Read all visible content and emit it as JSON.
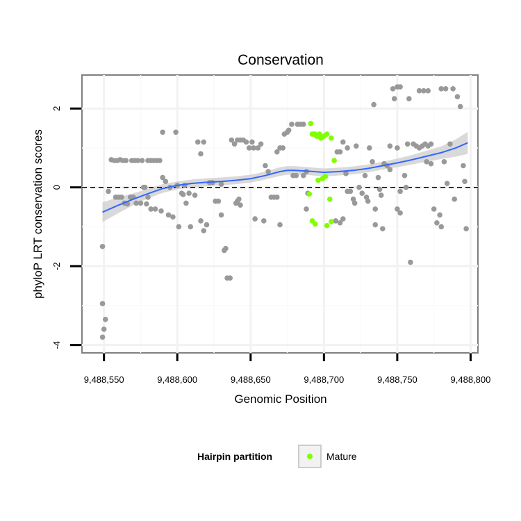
{
  "chart_data": {
    "type": "scatter",
    "title": "Conservation",
    "xlabel": "Genomic Position",
    "ylabel": "phyloP LRT conservation scores",
    "xlim": [
      9488535,
      9488805
    ],
    "ylim": [
      -4.2,
      2.85
    ],
    "x_ticks": [
      {
        "value": 9488550,
        "label": "9,488,550"
      },
      {
        "value": 9488600,
        "label": "9,488,600"
      },
      {
        "value": 9488650,
        "label": "9,488,650"
      },
      {
        "value": 9488700,
        "label": "9,488,700"
      },
      {
        "value": 9488750,
        "label": "9,488,750"
      },
      {
        "value": 9488800,
        "label": "9,488,800"
      }
    ],
    "y_ticks": [
      {
        "value": -4,
        "label": "-4"
      },
      {
        "value": -2,
        "label": "-2"
      },
      {
        "value": 0,
        "label": "0"
      },
      {
        "value": 2,
        "label": "2"
      }
    ],
    "reference_line": {
      "y": 0,
      "style": "dashed"
    },
    "grid": true,
    "legend": {
      "title": "Hairpin partition",
      "position": "bottom",
      "items": [
        {
          "label": "Mature",
          "color": "#7fff00"
        }
      ]
    },
    "colors": {
      "other": "#999999",
      "mature": "#7fff00",
      "smooth": "#3366ff",
      "ribbon": "#cccccc"
    },
    "smooth": {
      "x": [
        9488549,
        9488560,
        9488570,
        9488580,
        9488590,
        9488600,
        9488610,
        9488620,
        9488630,
        9488640,
        9488650,
        9488660,
        9488670,
        9488675,
        9488680,
        9488690,
        9488700,
        9488710,
        9488720,
        9488730,
        9488740,
        9488750,
        9488760,
        9488770,
        9488780,
        9488790,
        9488798
      ],
      "y": [
        -0.63,
        -0.45,
        -0.3,
        -0.16,
        -0.03,
        0.05,
        0.1,
        0.13,
        0.15,
        0.18,
        0.22,
        0.3,
        0.4,
        0.43,
        0.43,
        0.41,
        0.38,
        0.4,
        0.43,
        0.48,
        0.55,
        0.62,
        0.7,
        0.79,
        0.88,
        1.0,
        1.13
      ],
      "band": [
        0.25,
        0.2,
        0.15,
        0.12,
        0.11,
        0.1,
        0.1,
        0.1,
        0.1,
        0.1,
        0.1,
        0.1,
        0.11,
        0.11,
        0.11,
        0.1,
        0.1,
        0.1,
        0.1,
        0.1,
        0.1,
        0.11,
        0.12,
        0.14,
        0.16,
        0.22,
        0.28
      ]
    },
    "series": [
      {
        "name": "Mature",
        "points": [
          [
            9488691,
            1.62
          ],
          [
            9488692,
            1.35
          ],
          [
            9488693,
            1.35
          ],
          [
            9488694,
            1.35
          ],
          [
            9488695,
            1.3
          ],
          [
            9488696,
            1.3
          ],
          [
            9488697,
            1.35
          ],
          [
            9488698,
            1.25
          ],
          [
            9488700,
            1.3
          ],
          [
            9488702,
            1.35
          ],
          [
            9488705,
            1.25
          ],
          [
            9488707,
            0.68
          ],
          [
            9488696,
            0.18
          ],
          [
            9488699,
            0.22
          ],
          [
            9488701,
            0.28
          ],
          [
            9488690,
            -0.17
          ],
          [
            9488704,
            -0.3
          ],
          [
            9488692,
            -0.85
          ],
          [
            9488694,
            -0.93
          ],
          [
            9488702,
            -0.97
          ],
          [
            9488705,
            -0.87
          ]
        ]
      },
      {
        "points": [
          [
            9488549,
            -1.5
          ],
          [
            9488549,
            -2.95
          ],
          [
            9488551,
            -3.35
          ],
          [
            9488550,
            -3.6
          ],
          [
            9488549,
            -3.8
          ],
          [
            9488553,
            -0.1
          ],
          [
            9488555,
            0.7
          ],
          [
            9488557,
            0.68
          ],
          [
            9488559,
            0.68
          ],
          [
            9488561,
            0.7
          ],
          [
            9488563,
            0.68
          ],
          [
            9488565,
            0.68
          ],
          [
            9488558,
            -0.25
          ],
          [
            9488560,
            -0.25
          ],
          [
            9488562,
            -0.25
          ],
          [
            9488564,
            -0.4
          ],
          [
            9488566,
            -0.42
          ],
          [
            9488569,
            0.68
          ],
          [
            9488571,
            0.68
          ],
          [
            9488573,
            0.68
          ],
          [
            9488576,
            0.68
          ],
          [
            9488568,
            -0.25
          ],
          [
            9488570,
            -0.25
          ],
          [
            9488572,
            -0.4
          ],
          [
            9488575,
            -0.4
          ],
          [
            9488579,
            -0.42
          ],
          [
            9488577,
            0.0
          ],
          [
            9488578,
            0.0
          ],
          [
            9488580,
            0.68
          ],
          [
            9488582,
            0.68
          ],
          [
            9488584,
            0.68
          ],
          [
            9488586,
            0.68
          ],
          [
            9488588,
            0.68
          ],
          [
            9488580,
            -0.25
          ],
          [
            9488582,
            -0.55
          ],
          [
            9488585,
            -0.55
          ],
          [
            9488589,
            -0.6
          ],
          [
            9488590,
            1.4
          ],
          [
            9488590,
            0.25
          ],
          [
            9488592,
            0.15
          ],
          [
            9488595,
            0.0
          ],
          [
            9488594,
            -0.7
          ],
          [
            9488597,
            -0.75
          ],
          [
            9488599,
            1.4
          ],
          [
            9488600,
            0.05
          ],
          [
            9488601,
            -1.0
          ],
          [
            9488603,
            -0.15
          ],
          [
            9488604,
            -0.18
          ],
          [
            9488606,
            -0.4
          ],
          [
            9488605,
            0.05
          ],
          [
            9488608,
            -0.15
          ],
          [
            9488609,
            -1.0
          ],
          [
            9488612,
            -0.2
          ],
          [
            9488614,
            1.15
          ],
          [
            9488616,
            0.85
          ],
          [
            9488618,
            1.15
          ],
          [
            9488616,
            -0.85
          ],
          [
            9488618,
            -1.1
          ],
          [
            9488620,
            -0.95
          ],
          [
            9488622,
            0.12
          ],
          [
            9488624,
            0.12
          ],
          [
            9488626,
            -0.35
          ],
          [
            9488628,
            -0.35
          ],
          [
            9488630,
            -0.7
          ],
          [
            9488630,
            0.08
          ],
          [
            9488632,
            -1.6
          ],
          [
            9488633,
            -1.55
          ],
          [
            9488634,
            -2.3
          ],
          [
            9488636,
            -2.3
          ],
          [
            9488637,
            1.2
          ],
          [
            9488639,
            1.1
          ],
          [
            9488641,
            1.2
          ],
          [
            9488643,
            1.2
          ],
          [
            9488645,
            1.2
          ],
          [
            9488647,
            1.15
          ],
          [
            9488649,
            1.0
          ],
          [
            9488651,
            1.15
          ],
          [
            9488652,
            1.0
          ],
          [
            9488640,
            -0.4
          ],
          [
            9488641,
            -0.35
          ],
          [
            9488642,
            -0.3
          ],
          [
            9488643,
            -0.45
          ],
          [
            9488655,
            1.0
          ],
          [
            9488657,
            1.1
          ],
          [
            9488653,
            -0.8
          ],
          [
            9488659,
            -0.85
          ],
          [
            9488660,
            0.55
          ],
          [
            9488662,
            0.4
          ],
          [
            9488664,
            -0.25
          ],
          [
            9488666,
            -0.25
          ],
          [
            9488668,
            0.9
          ],
          [
            9488670,
            1.0
          ],
          [
            9488672,
            1.0
          ],
          [
            9488673,
            1.35
          ],
          [
            9488675,
            1.4
          ],
          [
            9488676,
            1.45
          ],
          [
            9488678,
            1.6
          ],
          [
            9488679,
            0.3
          ],
          [
            9488670,
            -0.95
          ],
          [
            9488668,
            -0.25
          ],
          [
            9488682,
            1.6
          ],
          [
            9488684,
            1.6
          ],
          [
            9488686,
            1.6
          ],
          [
            9488688,
            0.4
          ],
          [
            9488686,
            0.3
          ],
          [
            9488681,
            0.3
          ],
          [
            9488689,
            -0.15
          ],
          [
            9488688,
            -0.55
          ],
          [
            9488709,
            0.9
          ],
          [
            9488711,
            0.9
          ],
          [
            9488713,
            1.15
          ],
          [
            9488715,
            0.35
          ],
          [
            9488716,
            -0.1
          ],
          [
            9488716,
            1.0
          ],
          [
            9488708,
            -0.85
          ],
          [
            9488711,
            -0.9
          ],
          [
            9488713,
            -0.8
          ],
          [
            9488718,
            -0.1
          ],
          [
            9488720,
            -0.3
          ],
          [
            9488721,
            -0.4
          ],
          [
            9488722,
            1.05
          ],
          [
            9488724,
            0.0
          ],
          [
            9488726,
            -0.15
          ],
          [
            9488728,
            0.3
          ],
          [
            9488729,
            -0.25
          ],
          [
            9488730,
            -0.35
          ],
          [
            9488731,
            1.0
          ],
          [
            9488733,
            0.65
          ],
          [
            9488734,
            2.1
          ],
          [
            9488735,
            -0.55
          ],
          [
            9488735,
            -0.95
          ],
          [
            9488737,
            0.25
          ],
          [
            9488738,
            -0.05
          ],
          [
            9488739,
            -0.2
          ],
          [
            9488740,
            -1.05
          ],
          [
            9488741,
            0.6
          ],
          [
            9488743,
            0.55
          ],
          [
            9488745,
            0.45
          ],
          [
            9488745,
            1.05
          ],
          [
            9488747,
            2.5
          ],
          [
            9488748,
            2.25
          ],
          [
            9488750,
            2.55
          ],
          [
            9488752,
            2.55
          ],
          [
            9488750,
            1.0
          ],
          [
            9488752,
            -0.1
          ],
          [
            9488752,
            -0.65
          ],
          [
            9488750,
            -0.55
          ],
          [
            9488755,
            0.3
          ],
          [
            9488756,
            0.0
          ],
          [
            9488757,
            1.1
          ],
          [
            9488758,
            2.25
          ],
          [
            9488759,
            -1.9
          ],
          [
            9488761,
            1.1
          ],
          [
            9488763,
            1.05
          ],
          [
            9488765,
            2.45
          ],
          [
            9488768,
            2.45
          ],
          [
            9488771,
            2.45
          ],
          [
            9488765,
            1.0
          ],
          [
            9488767,
            1.05
          ],
          [
            9488769,
            1.1
          ],
          [
            9488771,
            1.05
          ],
          [
            9488773,
            1.1
          ],
          [
            9488770,
            0.65
          ],
          [
            9488773,
            0.6
          ],
          [
            9488775,
            -0.55
          ],
          [
            9488777,
            -0.9
          ],
          [
            9488779,
            -0.7
          ],
          [
            9488780,
            -1.0
          ],
          [
            9488780,
            2.5
          ],
          [
            9488783,
            2.5
          ],
          [
            9488782,
            0.65
          ],
          [
            9488784,
            0.1
          ],
          [
            9488786,
            1.1
          ],
          [
            9488788,
            2.5
          ],
          [
            9488789,
            -0.3
          ],
          [
            9488791,
            2.3
          ],
          [
            9488793,
            2.05
          ],
          [
            9488795,
            0.55
          ],
          [
            9488796,
            0.15
          ],
          [
            9488797,
            -1.05
          ]
        ]
      }
    ]
  }
}
